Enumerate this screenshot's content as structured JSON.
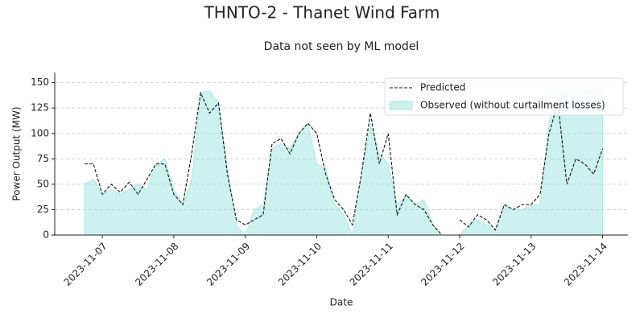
{
  "chart_data": {
    "type": "line",
    "title": "THNTO-2 - Thanet Wind Farm",
    "subtitle": "Data not seen by ML model",
    "x_label": "Date",
    "y_label": "Power Output (MW)",
    "x": [
      "2023-11-06T18:00",
      "2023-11-06T21:00",
      "2023-11-07T00:00",
      "2023-11-07T03:00",
      "2023-11-07T06:00",
      "2023-11-07T09:00",
      "2023-11-07T12:00",
      "2023-11-07T15:00",
      "2023-11-07T18:00",
      "2023-11-07T21:00",
      "2023-11-08T00:00",
      "2023-11-08T03:00",
      "2023-11-08T06:00",
      "2023-11-08T09:00",
      "2023-11-08T12:00",
      "2023-11-08T15:00",
      "2023-11-08T18:00",
      "2023-11-08T21:00",
      "2023-11-09T00:00",
      "2023-11-09T03:00",
      "2023-11-09T06:00",
      "2023-11-09T09:00",
      "2023-11-09T12:00",
      "2023-11-09T15:00",
      "2023-11-09T18:00",
      "2023-11-09T21:00",
      "2023-11-10T00:00",
      "2023-11-10T03:00",
      "2023-11-10T06:00",
      "2023-11-10T09:00",
      "2023-11-10T12:00",
      "2023-11-10T15:00",
      "2023-11-10T18:00",
      "2023-11-10T21:00",
      "2023-11-11T00:00",
      "2023-11-11T03:00",
      "2023-11-11T06:00",
      "2023-11-11T09:00",
      "2023-11-11T12:00",
      "2023-11-11T15:00",
      "2023-11-11T18:00",
      "2023-11-11T21:00",
      "2023-11-12T00:00",
      "2023-11-12T03:00",
      "2023-11-12T06:00",
      "2023-11-12T09:00",
      "2023-11-12T12:00",
      "2023-11-12T15:00",
      "2023-11-12T18:00",
      "2023-11-12T21:00",
      "2023-11-13T00:00",
      "2023-11-13T03:00",
      "2023-11-13T06:00",
      "2023-11-13T09:00",
      "2023-11-13T12:00",
      "2023-11-13T15:00",
      "2023-11-13T18:00",
      "2023-11-13T21:00",
      "2023-11-14T00:00"
    ],
    "series": [
      {
        "name": "Observed (without curtailment losses)",
        "kind": "area",
        "color": "#7fdcd4",
        "values": [
          50,
          55,
          40,
          45,
          40,
          45,
          50,
          45,
          70,
          75,
          45,
          30,
          55,
          140,
          142,
          130,
          65,
          10,
          0,
          25,
          30,
          85,
          90,
          85,
          100,
          110,
          70,
          65,
          30,
          20,
          0,
          60,
          110,
          80,
          70,
          30,
          40,
          30,
          35,
          10,
          0,
          0,
          0,
          10,
          15,
          10,
          5,
          30,
          25,
          25,
          30,
          30,
          110,
          145,
          140,
          130,
          140,
          145,
          140
        ]
      },
      {
        "name": "Predicted",
        "kind": "line",
        "color": "#111111",
        "values": [
          70,
          70,
          40,
          50,
          42,
          52,
          40,
          55,
          70,
          70,
          40,
          30,
          80,
          140,
          120,
          130,
          60,
          15,
          10,
          15,
          20,
          90,
          95,
          80,
          100,
          110,
          100,
          60,
          35,
          25,
          10,
          60,
          120,
          70,
          100,
          20,
          40,
          30,
          25,
          10,
          0,
          null,
          15,
          8,
          20,
          15,
          5,
          30,
          25,
          30,
          30,
          40,
          100,
          130,
          50,
          75,
          70,
          60,
          85
        ]
      }
    ],
    "xlim": [
      "2023-11-06T08:00",
      "2023-11-14T08:30"
    ],
    "xticks": [
      "2023-11-07",
      "2023-11-08",
      "2023-11-09",
      "2023-11-10",
      "2023-11-11",
      "2023-11-12",
      "2023-11-13",
      "2023-11-14"
    ],
    "ylim": [
      0,
      160
    ],
    "yticks": [
      0,
      25,
      50,
      75,
      100,
      125,
      150
    ],
    "grid": true,
    "legend": "upper right"
  }
}
